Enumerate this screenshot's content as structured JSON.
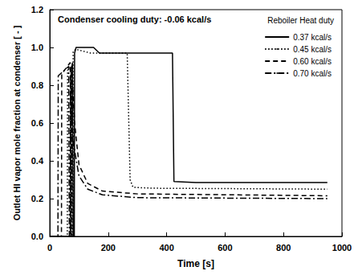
{
  "chart_data": {
    "type": "line",
    "annotation": "Condenser cooling duty: -0.06 kcal/s",
    "legend_title": "Reboiler Heat duty",
    "x_label": "Time [s]",
    "y_label": "Outlet HI vapor mole fraction at condenser [ - ]",
    "xlim": [
      0,
      1000
    ],
    "xticks": [
      0,
      200,
      400,
      600,
      800,
      1000
    ],
    "ylim": [
      0,
      1.2
    ],
    "yticks": [
      {
        "value": 0,
        "label": "0.0"
      },
      0.2,
      0.4,
      0.6,
      0.8,
      {
        "value": 1,
        "label": "1.0"
      },
      1.2
    ],
    "grid": false,
    "legend": "upper right",
    "marker": "none",
    "series": [
      {
        "name": "0.37 kcal/s",
        "color": "#000000",
        "line_style": "solid",
        "x": [
          0,
          72,
          73,
          78,
          80,
          84,
          85,
          90,
          150,
          170,
          420,
          425,
          500,
          950
        ],
        "values": [
          0,
          0,
          0.88,
          0.92,
          0,
          0,
          0.97,
          1.0,
          1.0,
          0.97,
          0.97,
          0.29,
          0.285,
          0.285
        ]
      },
      {
        "name": "0.45 kcal/s",
        "color": "#000000",
        "line_style": "dotted",
        "x": [
          0,
          60,
          61,
          75,
          77,
          79,
          80,
          90,
          140,
          265,
          275,
          285,
          350,
          950
        ],
        "values": [
          0,
          0,
          0.88,
          0.9,
          0,
          0,
          0.98,
          0.99,
          0.97,
          0.97,
          0.3,
          0.26,
          0.255,
          0.25
        ]
      },
      {
        "name": "0.60 kcal/s",
        "color": "#000000",
        "line_style": "dashed",
        "x": [
          0,
          40,
          41,
          70,
          72,
          74,
          75,
          85,
          100,
          130,
          180,
          300,
          950
        ],
        "values": [
          0,
          0,
          0.86,
          0.92,
          0,
          0,
          0.9,
          0.6,
          0.38,
          0.28,
          0.24,
          0.225,
          0.215
        ]
      },
      {
        "name": "0.70 kcal/s",
        "color": "#000000",
        "line_style": "dashdot",
        "x": [
          0,
          28,
          29,
          65,
          67,
          70,
          71,
          80,
          100,
          130,
          180,
          300,
          950
        ],
        "values": [
          0,
          0,
          0.85,
          0.9,
          0,
          0,
          0.85,
          0.5,
          0.32,
          0.25,
          0.22,
          0.205,
          0.2
        ]
      }
    ]
  }
}
